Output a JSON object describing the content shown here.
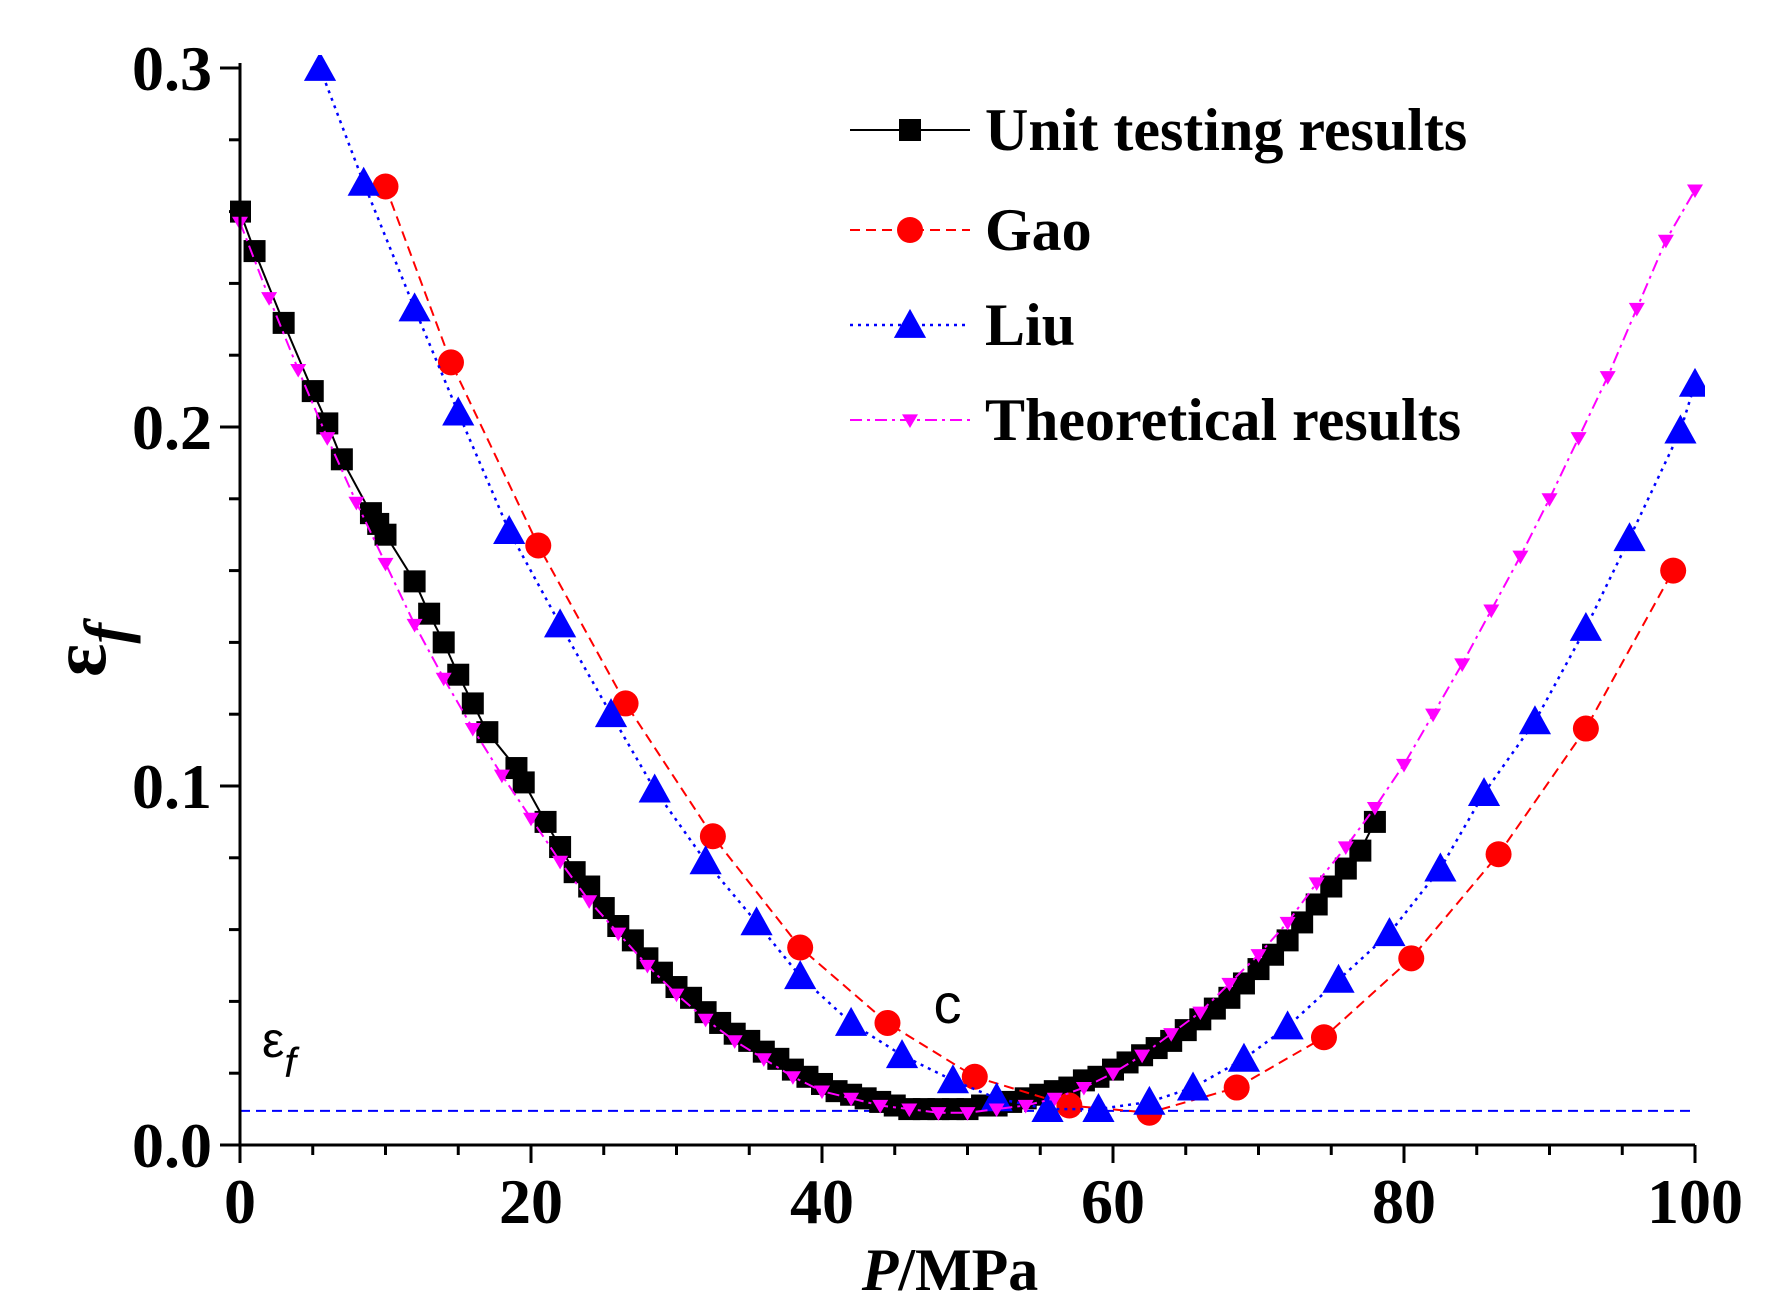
{
  "chart_data": {
    "type": "line",
    "title": "",
    "xlabel": "P/MPa",
    "xlabel_italic_part": "P",
    "xlabel_unit_part": "/MPa",
    "ylabel": "εf",
    "ylabel_symbol": "ε",
    "ylabel_subscript": "f",
    "xlim": [
      0,
      100
    ],
    "ylim": [
      0,
      0.3
    ],
    "x_ticks": [
      0,
      20,
      40,
      60,
      80,
      100
    ],
    "x_tick_labels": [
      "0",
      "20",
      "40",
      "60",
      "80",
      "100"
    ],
    "y_ticks": [
      0.0,
      0.1,
      0.2,
      0.3
    ],
    "y_tick_labels": [
      "0.0",
      "0.1",
      "0.2",
      "0.3"
    ],
    "grid": false,
    "legend_position": "top-right",
    "annotations": {
      "point_label": {
        "text": "c",
        "x": 50,
        "y": 0.034
      },
      "threshold_label": {
        "symbol": "ε",
        "subscript": "f"
      },
      "threshold_y": 0.0095
    },
    "series": [
      {
        "name": "Unit testing results",
        "color": "#000000",
        "marker": "square",
        "line": "solid",
        "x": [
          0,
          1,
          3,
          5,
          6,
          7,
          9,
          9.5,
          10,
          12,
          13,
          14,
          15,
          16,
          17,
          19,
          19.5,
          21,
          22,
          23,
          24,
          25,
          26,
          27,
          28,
          29,
          30,
          31,
          32,
          33,
          34,
          35,
          36,
          37,
          38,
          39,
          40,
          41,
          42,
          43,
          44,
          45,
          46,
          47,
          48,
          49,
          50,
          51,
          52,
          53,
          54,
          55,
          56,
          57,
          58,
          59,
          60,
          61,
          62,
          63,
          64,
          65,
          66,
          67,
          68,
          69,
          70,
          71,
          72,
          73,
          74,
          75,
          76,
          77,
          78
        ],
        "y": [
          0.26,
          0.249,
          0.229,
          0.21,
          0.201,
          0.191,
          0.176,
          0.173,
          0.17,
          0.157,
          0.148,
          0.14,
          0.131,
          0.123,
          0.115,
          0.105,
          0.101,
          0.09,
          0.083,
          0.076,
          0.072,
          0.066,
          0.061,
          0.057,
          0.052,
          0.048,
          0.044,
          0.041,
          0.037,
          0.034,
          0.031,
          0.029,
          0.026,
          0.024,
          0.021,
          0.019,
          0.017,
          0.015,
          0.014,
          0.013,
          0.012,
          0.011,
          0.01,
          0.01,
          0.01,
          0.01,
          0.01,
          0.011,
          0.011,
          0.012,
          0.013,
          0.014,
          0.015,
          0.016,
          0.018,
          0.019,
          0.021,
          0.023,
          0.025,
          0.027,
          0.029,
          0.032,
          0.035,
          0.038,
          0.041,
          0.045,
          0.049,
          0.053,
          0.057,
          0.062,
          0.067,
          0.072,
          0.077,
          0.082,
          0.09
        ]
      },
      {
        "name": "Gao",
        "color": "#ff0000",
        "marker": "circle",
        "line": "dashed",
        "x": [
          10,
          14.5,
          20.5,
          26.5,
          32.5,
          38.5,
          44.5,
          50.5,
          57,
          62.5,
          68.5,
          74.5,
          80.5,
          86.5,
          92.5,
          98.5
        ],
        "y": [
          0.267,
          0.218,
          0.167,
          0.123,
          0.086,
          0.055,
          0.034,
          0.019,
          0.011,
          0.009,
          0.016,
          0.03,
          0.052,
          0.081,
          0.116,
          0.16
        ]
      },
      {
        "name": "Liu",
        "color": "#0000ff",
        "marker": "triangle-up",
        "line": "dotted",
        "x": [
          5.5,
          8.5,
          12,
          15,
          18.5,
          22,
          25.5,
          28.5,
          32,
          35.5,
          38.5,
          42,
          45.5,
          49,
          52,
          55.5,
          59,
          62.5,
          65.5,
          69,
          72,
          75.5,
          79,
          82.5,
          85.5,
          89,
          92.5,
          95.5,
          99,
          100
        ],
        "y": [
          0.3,
          0.268,
          0.233,
          0.204,
          0.171,
          0.145,
          0.12,
          0.099,
          0.079,
          0.062,
          0.047,
          0.034,
          0.025,
          0.018,
          0.013,
          0.01,
          0.01,
          0.012,
          0.016,
          0.024,
          0.033,
          0.046,
          0.059,
          0.077,
          0.098,
          0.118,
          0.144,
          0.169,
          0.199,
          0.212
        ]
      },
      {
        "name": "Theoretical results",
        "color": "#ff00ff",
        "marker": "triangle-down",
        "line": "dash-dot",
        "x": [
          0,
          2,
          4,
          6,
          8,
          10,
          12,
          14,
          16,
          18,
          20,
          22,
          24,
          26,
          28,
          30,
          32,
          34,
          36,
          38,
          40,
          42,
          44,
          46,
          48,
          50,
          52,
          54,
          56,
          58,
          60,
          62,
          64,
          66,
          68,
          70,
          72,
          74,
          76,
          78,
          80,
          82,
          84,
          86,
          88,
          90,
          92,
          94,
          96,
          98,
          100
        ],
        "y": [
          0.257,
          0.236,
          0.216,
          0.197,
          0.179,
          0.162,
          0.145,
          0.13,
          0.116,
          0.103,
          0.091,
          0.079,
          0.068,
          0.059,
          0.05,
          0.042,
          0.035,
          0.029,
          0.024,
          0.019,
          0.015,
          0.013,
          0.011,
          0.01,
          0.009,
          0.009,
          0.01,
          0.011,
          0.013,
          0.016,
          0.02,
          0.025,
          0.031,
          0.037,
          0.045,
          0.053,
          0.062,
          0.073,
          0.083,
          0.094,
          0.106,
          0.12,
          0.134,
          0.149,
          0.164,
          0.18,
          0.197,
          0.214,
          0.233,
          0.252,
          0.266
        ]
      }
    ]
  }
}
